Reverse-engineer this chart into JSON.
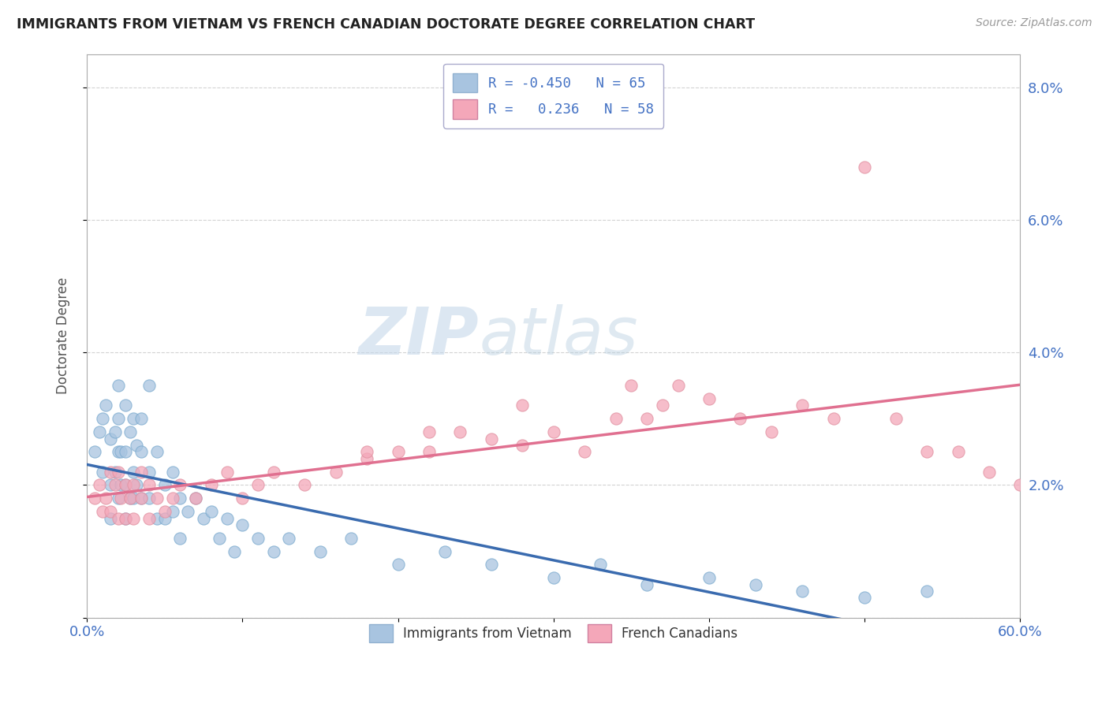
{
  "title": "IMMIGRANTS FROM VIETNAM VS FRENCH CANADIAN DOCTORATE DEGREE CORRELATION CHART",
  "source": "Source: ZipAtlas.com",
  "ylabel": "Doctorate Degree",
  "x_min": 0.0,
  "x_max": 0.6,
  "y_min": 0.0,
  "y_max": 0.085,
  "x_ticks": [
    0.0,
    0.1,
    0.2,
    0.3,
    0.4,
    0.5,
    0.6
  ],
  "x_tick_labels": [
    "0.0%",
    "",
    "",
    "",
    "",
    "",
    "60.0%"
  ],
  "y_ticks": [
    0.0,
    0.02,
    0.04,
    0.06,
    0.08
  ],
  "y_tick_labels": [
    "",
    "2.0%",
    "4.0%",
    "6.0%",
    "8.0%"
  ],
  "color_blue": "#a8c4e0",
  "color_pink": "#f4a7b9",
  "color_blue_line": "#3a6baf",
  "color_pink_line": "#e07090",
  "watermark_color": "#dce8f0",
  "watermark_zip": "ZIP",
  "watermark_atlas": "atlas",
  "vietnam_x": [
    0.005,
    0.008,
    0.01,
    0.01,
    0.012,
    0.015,
    0.015,
    0.015,
    0.018,
    0.018,
    0.02,
    0.02,
    0.02,
    0.02,
    0.022,
    0.022,
    0.025,
    0.025,
    0.025,
    0.025,
    0.028,
    0.028,
    0.03,
    0.03,
    0.03,
    0.032,
    0.032,
    0.035,
    0.035,
    0.035,
    0.04,
    0.04,
    0.04,
    0.045,
    0.045,
    0.05,
    0.05,
    0.055,
    0.055,
    0.06,
    0.06,
    0.065,
    0.07,
    0.075,
    0.08,
    0.085,
    0.09,
    0.095,
    0.1,
    0.11,
    0.12,
    0.13,
    0.15,
    0.17,
    0.2,
    0.23,
    0.26,
    0.3,
    0.33,
    0.36,
    0.4,
    0.43,
    0.46,
    0.5,
    0.54
  ],
  "vietnam_y": [
    0.025,
    0.028,
    0.03,
    0.022,
    0.032,
    0.027,
    0.02,
    0.015,
    0.028,
    0.022,
    0.03,
    0.025,
    0.018,
    0.035,
    0.025,
    0.02,
    0.032,
    0.025,
    0.02,
    0.015,
    0.028,
    0.018,
    0.03,
    0.022,
    0.018,
    0.026,
    0.02,
    0.025,
    0.018,
    0.03,
    0.022,
    0.018,
    0.035,
    0.025,
    0.015,
    0.02,
    0.015,
    0.022,
    0.016,
    0.018,
    0.012,
    0.016,
    0.018,
    0.015,
    0.016,
    0.012,
    0.015,
    0.01,
    0.014,
    0.012,
    0.01,
    0.012,
    0.01,
    0.012,
    0.008,
    0.01,
    0.008,
    0.006,
    0.008,
    0.005,
    0.006,
    0.005,
    0.004,
    0.003,
    0.004
  ],
  "french_x": [
    0.005,
    0.008,
    0.01,
    0.012,
    0.015,
    0.015,
    0.018,
    0.02,
    0.02,
    0.022,
    0.025,
    0.025,
    0.028,
    0.03,
    0.03,
    0.035,
    0.035,
    0.04,
    0.04,
    0.045,
    0.05,
    0.055,
    0.06,
    0.07,
    0.08,
    0.09,
    0.1,
    0.11,
    0.12,
    0.14,
    0.16,
    0.18,
    0.2,
    0.22,
    0.24,
    0.26,
    0.28,
    0.3,
    0.32,
    0.34,
    0.36,
    0.37,
    0.38,
    0.4,
    0.42,
    0.44,
    0.46,
    0.48,
    0.5,
    0.52,
    0.54,
    0.56,
    0.58,
    0.6,
    0.35,
    0.28,
    0.22,
    0.18
  ],
  "french_y": [
    0.018,
    0.02,
    0.016,
    0.018,
    0.022,
    0.016,
    0.02,
    0.022,
    0.015,
    0.018,
    0.02,
    0.015,
    0.018,
    0.02,
    0.015,
    0.018,
    0.022,
    0.02,
    0.015,
    0.018,
    0.016,
    0.018,
    0.02,
    0.018,
    0.02,
    0.022,
    0.018,
    0.02,
    0.022,
    0.02,
    0.022,
    0.024,
    0.025,
    0.025,
    0.028,
    0.027,
    0.026,
    0.028,
    0.025,
    0.03,
    0.03,
    0.032,
    0.035,
    0.033,
    0.03,
    0.028,
    0.032,
    0.03,
    0.068,
    0.03,
    0.025,
    0.025,
    0.022,
    0.02,
    0.035,
    0.032,
    0.028,
    0.025
  ]
}
